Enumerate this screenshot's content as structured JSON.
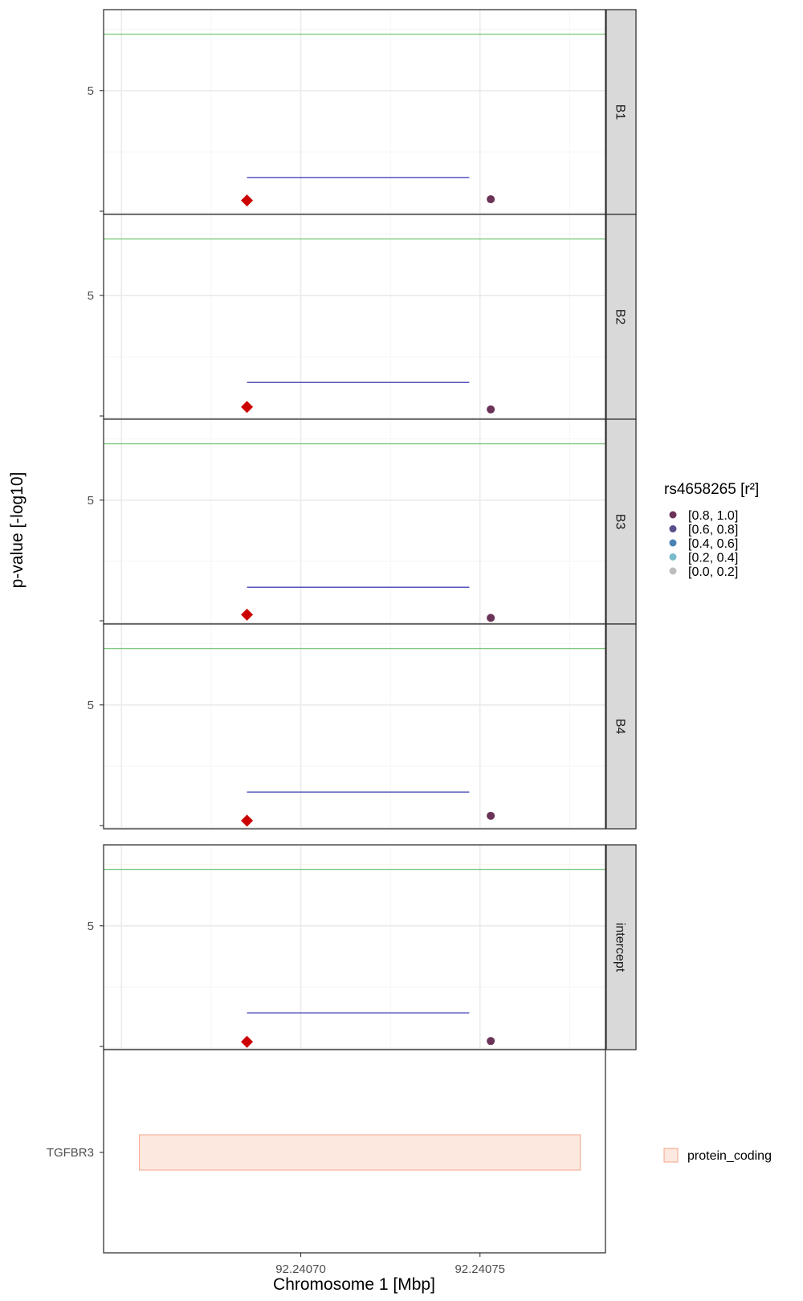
{
  "chart_data": {
    "type": "scatter",
    "ylabel": "p-value [-log10]",
    "xlabel": "Chromosome 1 [Mbp]",
    "x_ticks": [
      "92.24070",
      "92.24075"
    ],
    "x_tick_values": [
      92.2407,
      92.24075
    ],
    "xlim": [
      92.240645,
      92.240785
    ],
    "y_ticks": [
      "5"
    ],
    "y_tick_values": [
      5
    ],
    "ylim": [
      -0.05,
      8.3
    ],
    "grid": true,
    "significance_line_y": 7.3,
    "segment_x": [
      92.240685,
      92.240747
    ],
    "lead_variant": {
      "marker": "diamond",
      "color": "#cc0000",
      "x": 92.240685
    },
    "variant": {
      "marker": "circle",
      "x": 92.240753
    },
    "facets": [
      {
        "label": "B1",
        "segment_y": 1.45,
        "lead_y": 0.52,
        "variant_y": 0.57
      },
      {
        "label": "B2",
        "segment_y": 1.45,
        "lead_y": 0.45,
        "variant_y": 0.35
      },
      {
        "label": "B3",
        "segment_y": 1.45,
        "lead_y": 0.33,
        "variant_y": 0.2
      },
      {
        "label": "B4",
        "segment_y": 1.45,
        "lead_y": 0.28,
        "variant_y": 0.48
      },
      {
        "label": "intercept",
        "segment_y": 1.45,
        "lead_y": 0.27,
        "variant_y": 0.3
      }
    ],
    "legend": {
      "title": "rs4658265 [r²]",
      "placement": "right",
      "entries": [
        {
          "label": "[0.8, 1.0]",
          "color": "#6b3358"
        },
        {
          "label": "[0.6, 0.8]",
          "color": "#5a4e8c"
        },
        {
          "label": "[0.4, 0.6]",
          "color": "#4a82b4"
        },
        {
          "label": "[0.2, 0.4]",
          "color": "#79bccc"
        },
        {
          "label": "[0.0, 0.2]",
          "color": "#bdbdbd"
        }
      ]
    },
    "gene_track": {
      "genes": [
        {
          "name": "TGFBR3",
          "start": 92.240655,
          "end": 92.240778,
          "biotype": "protein_coding"
        }
      ],
      "legend_label": "protein_coding",
      "fill": "#fde8e0",
      "stroke": "#f3a488"
    },
    "colors": {
      "significance_line": "#7fc97f",
      "segment": "#1a1aaa",
      "grid_major": "#ebebeb",
      "grid_minor": "#f5f5f5",
      "strip_bg": "#d9d9d9"
    }
  }
}
